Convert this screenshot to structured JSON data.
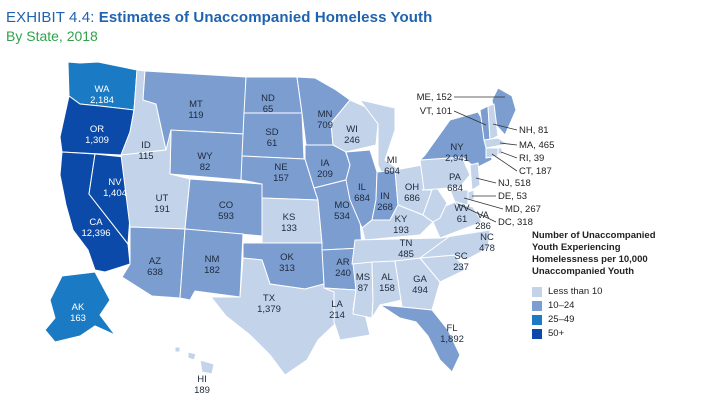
{
  "header": {
    "exhibit": "EXHIBIT 4.4:",
    "title": "Estimates of Unaccompanied Homeless Youth",
    "subtitle": "By State, 2018"
  },
  "colors": {
    "lt10": "#c3d3ea",
    "10to24": "#7c9dd0",
    "25to49": "#1a7bc4",
    "50plus": "#0b4aa8",
    "background": "#ffffff",
    "border": "#ffffff"
  },
  "legend": {
    "title_lines": [
      "Number of Unaccompanied",
      "Youth Experiencing",
      "Homelessness per 10,000",
      "Unaccompanied Youth"
    ],
    "items": [
      {
        "label": "Less than 10",
        "color": "#c3d3ea"
      },
      {
        "label": "10–24",
        "color": "#7c9dd0"
      },
      {
        "label": "25–49",
        "color": "#1a7bc4"
      },
      {
        "label": "50+",
        "color": "#0b4aa8"
      }
    ]
  },
  "states": [
    {
      "abbr": "WA",
      "value": "2,184",
      "category": "25-49"
    },
    {
      "abbr": "OR",
      "value": "1,309",
      "category": "50+"
    },
    {
      "abbr": "CA",
      "value": "12,396",
      "category": "50+"
    },
    {
      "abbr": "NV",
      "value": "1,404",
      "category": "50+"
    },
    {
      "abbr": "ID",
      "value": "115",
      "category": "<10"
    },
    {
      "abbr": "MT",
      "value": "119",
      "category": "10-24"
    },
    {
      "abbr": "WY",
      "value": "82",
      "category": "10-24"
    },
    {
      "abbr": "UT",
      "value": "191",
      "category": "<10"
    },
    {
      "abbr": "CO",
      "value": "593",
      "category": "10-24"
    },
    {
      "abbr": "AZ",
      "value": "638",
      "category": "10-24"
    },
    {
      "abbr": "NM",
      "value": "182",
      "category": "10-24"
    },
    {
      "abbr": "ND",
      "value": "65",
      "category": "10-24"
    },
    {
      "abbr": "SD",
      "value": "61",
      "category": "10-24"
    },
    {
      "abbr": "NE",
      "value": "157",
      "category": "10-24"
    },
    {
      "abbr": "KS",
      "value": "133",
      "category": "<10"
    },
    {
      "abbr": "OK",
      "value": "313",
      "category": "10-24"
    },
    {
      "abbr": "TX",
      "value": "1,379",
      "category": "<10"
    },
    {
      "abbr": "MN",
      "value": "709",
      "category": "10-24"
    },
    {
      "abbr": "IA",
      "value": "209",
      "category": "10-24"
    },
    {
      "abbr": "MO",
      "value": "534",
      "category": "10-24"
    },
    {
      "abbr": "AR",
      "value": "240",
      "category": "10-24"
    },
    {
      "abbr": "LA",
      "value": "214",
      "category": "<10"
    },
    {
      "abbr": "WI",
      "value": "246",
      "category": "<10"
    },
    {
      "abbr": "IL",
      "value": "684",
      "category": "10-24"
    },
    {
      "abbr": "MI",
      "value": "604",
      "category": "<10"
    },
    {
      "abbr": "IN",
      "value": "268",
      "category": "10-24"
    },
    {
      "abbr": "OH",
      "value": "686",
      "category": "<10"
    },
    {
      "abbr": "KY",
      "value": "193",
      "category": "<10"
    },
    {
      "abbr": "TN",
      "value": "485",
      "category": "<10"
    },
    {
      "abbr": "MS",
      "value": "87",
      "category": "<10"
    },
    {
      "abbr": "AL",
      "value": "158",
      "category": "<10"
    },
    {
      "abbr": "GA",
      "value": "494",
      "category": "<10"
    },
    {
      "abbr": "FL",
      "value": "1,892",
      "category": "10-24"
    },
    {
      "abbr": "SC",
      "value": "237",
      "category": "<10"
    },
    {
      "abbr": "NC",
      "value": "478",
      "category": "<10"
    },
    {
      "abbr": "VA",
      "value": "286",
      "category": "<10"
    },
    {
      "abbr": "WV",
      "value": "61",
      "category": "<10"
    },
    {
      "abbr": "PA",
      "value": "684",
      "category": "<10"
    },
    {
      "abbr": "NY",
      "value": "2,941",
      "category": "10-24"
    },
    {
      "abbr": "AK",
      "value": "163",
      "category": "25-49"
    },
    {
      "abbr": "HI",
      "value": "189",
      "category": "<10"
    }
  ],
  "callouts": [
    {
      "label": "ME, 152",
      "category": "10-24"
    },
    {
      "label": "VT, 101",
      "category": "10-24"
    },
    {
      "label": "NH, 81",
      "category": "<10"
    },
    {
      "label": "MA, 465",
      "category": "<10"
    },
    {
      "label": "RI, 39",
      "category": "<10"
    },
    {
      "label": "CT, 187",
      "category": "<10"
    },
    {
      "label": "NJ, 518",
      "category": "<10"
    },
    {
      "label": "DE, 53",
      "category": "<10"
    },
    {
      "label": "MD, 267",
      "category": "<10"
    },
    {
      "label": "DC, 318",
      "category": "10-24"
    }
  ]
}
